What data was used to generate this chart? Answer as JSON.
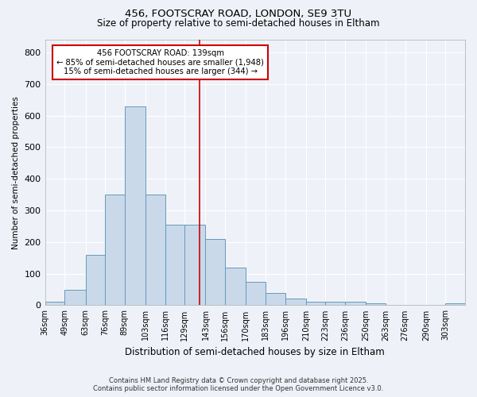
{
  "title1": "456, FOOTSCRAY ROAD, LONDON, SE9 3TU",
  "title2": "Size of property relative to semi-detached houses in Eltham",
  "xlabel": "Distribution of semi-detached houses by size in Eltham",
  "ylabel": "Number of semi-detached properties",
  "bar_labels": [
    "36sqm",
    "49sqm",
    "63sqm",
    "76sqm",
    "89sqm",
    "103sqm",
    "116sqm",
    "129sqm",
    "143sqm",
    "156sqm",
    "170sqm",
    "183sqm",
    "196sqm",
    "210sqm",
    "223sqm",
    "236sqm",
    "250sqm",
    "263sqm",
    "276sqm",
    "290sqm",
    "303sqm"
  ],
  "bar_values": [
    10,
    50,
    160,
    350,
    630,
    350,
    255,
    255,
    210,
    120,
    75,
    40,
    20,
    10,
    10,
    10,
    5,
    0,
    0,
    0,
    5
  ],
  "bin_edges": [
    36,
    49,
    63,
    76,
    89,
    103,
    116,
    129,
    143,
    156,
    170,
    183,
    196,
    210,
    223,
    236,
    250,
    263,
    276,
    290,
    303,
    316
  ],
  "bar_color": "#c9d9ea",
  "bar_edge_color": "#6699bb",
  "vline_x": 139,
  "vline_color": "#cc0000",
  "annotation_line1": "456 FOOTSCRAY ROAD: 139sqm",
  "annotation_line2": "← 85% of semi-detached houses are smaller (1,948)",
  "annotation_line3": "15% of semi-detached houses are larger (344) →",
  "annotation_box_color": "#ffffff",
  "annotation_box_edge": "#cc0000",
  "bg_color": "#eef2f8",
  "grid_color": "#ffffff",
  "footer1": "Contains HM Land Registry data © Crown copyright and database right 2025.",
  "footer2": "Contains public sector information licensed under the Open Government Licence v3.0.",
  "ylim": [
    0,
    840
  ],
  "yticks": [
    0,
    100,
    200,
    300,
    400,
    500,
    600,
    700,
    800
  ]
}
